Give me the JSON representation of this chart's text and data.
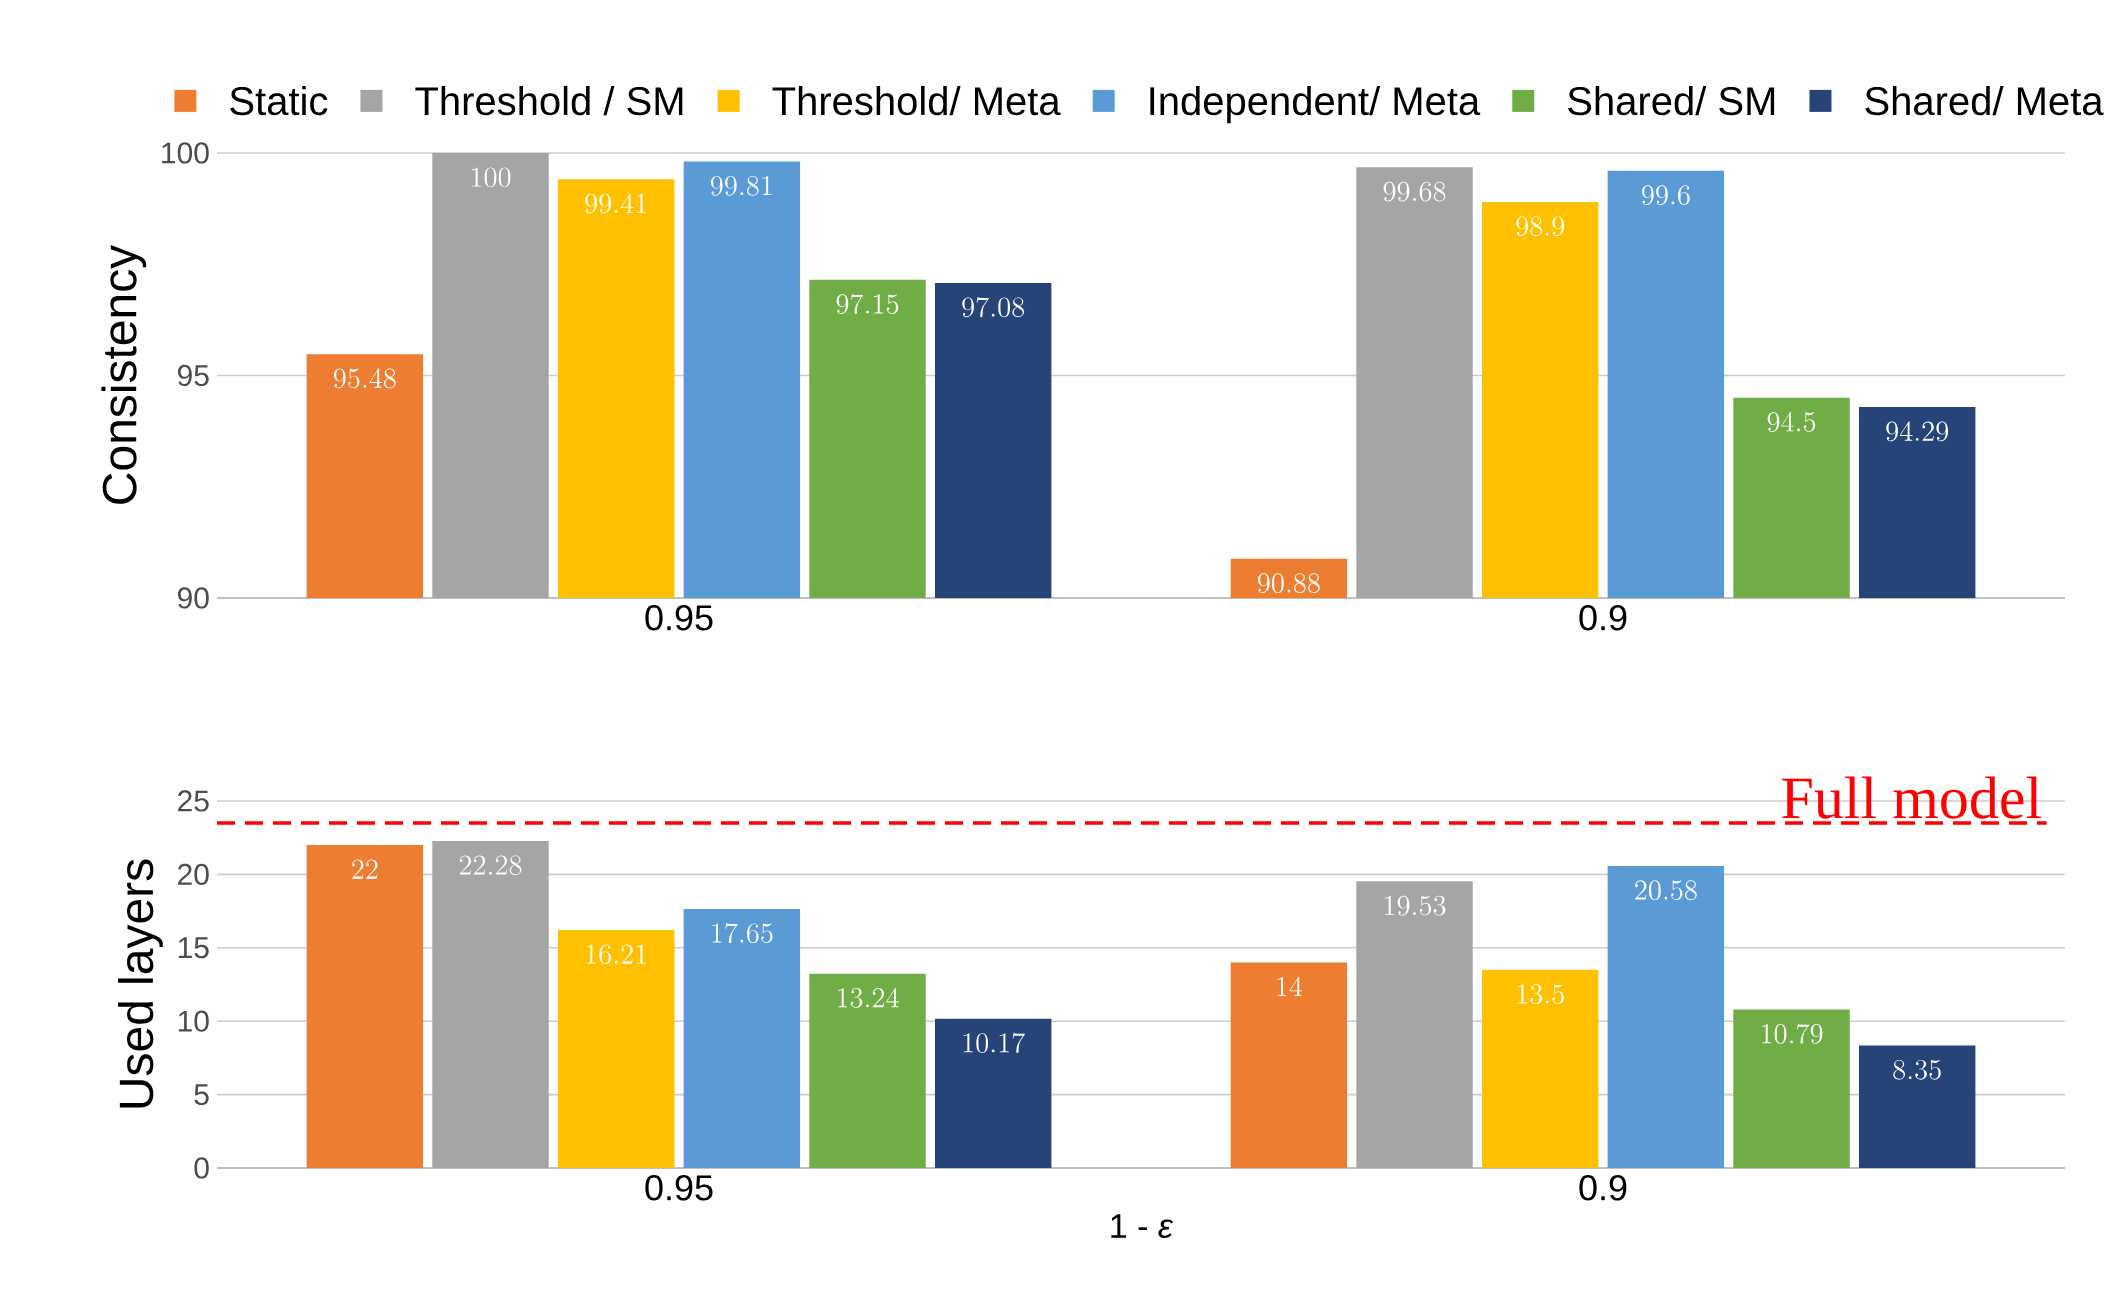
{
  "chart_data": [
    {
      "type": "bar",
      "ylabel": "Consistency",
      "categories": [
        "0.95",
        "0.9"
      ],
      "ylim": [
        90,
        100
      ],
      "yticks": [
        90,
        95,
        100
      ],
      "grid": "y",
      "legend": "top",
      "data_labels": true,
      "series": [
        {
          "name": "Static",
          "color": "#ed7d31",
          "values": [
            95.48,
            90.88
          ]
        },
        {
          "name": "Threshold / SM",
          "color": "#a5a5a5",
          "values": [
            100,
            99.68
          ]
        },
        {
          "name": "Threshold/ Meta",
          "color": "#ffc000",
          "values": [
            99.41,
            98.9
          ]
        },
        {
          "name": "Independent/ Meta",
          "color": "#5b9bd5",
          "values": [
            99.81,
            99.6
          ]
        },
        {
          "name": "Shared/ SM",
          "color": "#70ad47",
          "values": [
            97.15,
            94.5
          ]
        },
        {
          "name": "Shared/ Meta",
          "color": "#264478",
          "values": [
            97.08,
            94.29
          ]
        }
      ]
    },
    {
      "type": "bar",
      "ylabel": "Used layers",
      "xlabel": "1 - *ε*",
      "categories": [
        "0.95",
        "0.9"
      ],
      "ylim": [
        0,
        25
      ],
      "yticks": [
        0,
        5,
        10,
        15,
        20,
        25
      ],
      "grid": "y",
      "data_labels": true,
      "ref_lines": [
        {
          "axis": "y",
          "value": 23.5,
          "label": "Full model",
          "color": "#ff0000",
          "line_style": "dashed"
        }
      ],
      "series": [
        {
          "color": "#ed7d31",
          "values": [
            22,
            14
          ]
        },
        {
          "color": "#a5a5a5",
          "values": [
            22.28,
            19.53
          ]
        },
        {
          "color": "#ffc000",
          "values": [
            16.21,
            13.5
          ]
        },
        {
          "color": "#5b9bd5",
          "values": [
            17.65,
            20.58
          ]
        },
        {
          "color": "#70ad47",
          "values": [
            13.24,
            10.79
          ]
        },
        {
          "color": "#264478",
          "values": [
            10.17,
            8.35
          ]
        }
      ]
    }
  ]
}
